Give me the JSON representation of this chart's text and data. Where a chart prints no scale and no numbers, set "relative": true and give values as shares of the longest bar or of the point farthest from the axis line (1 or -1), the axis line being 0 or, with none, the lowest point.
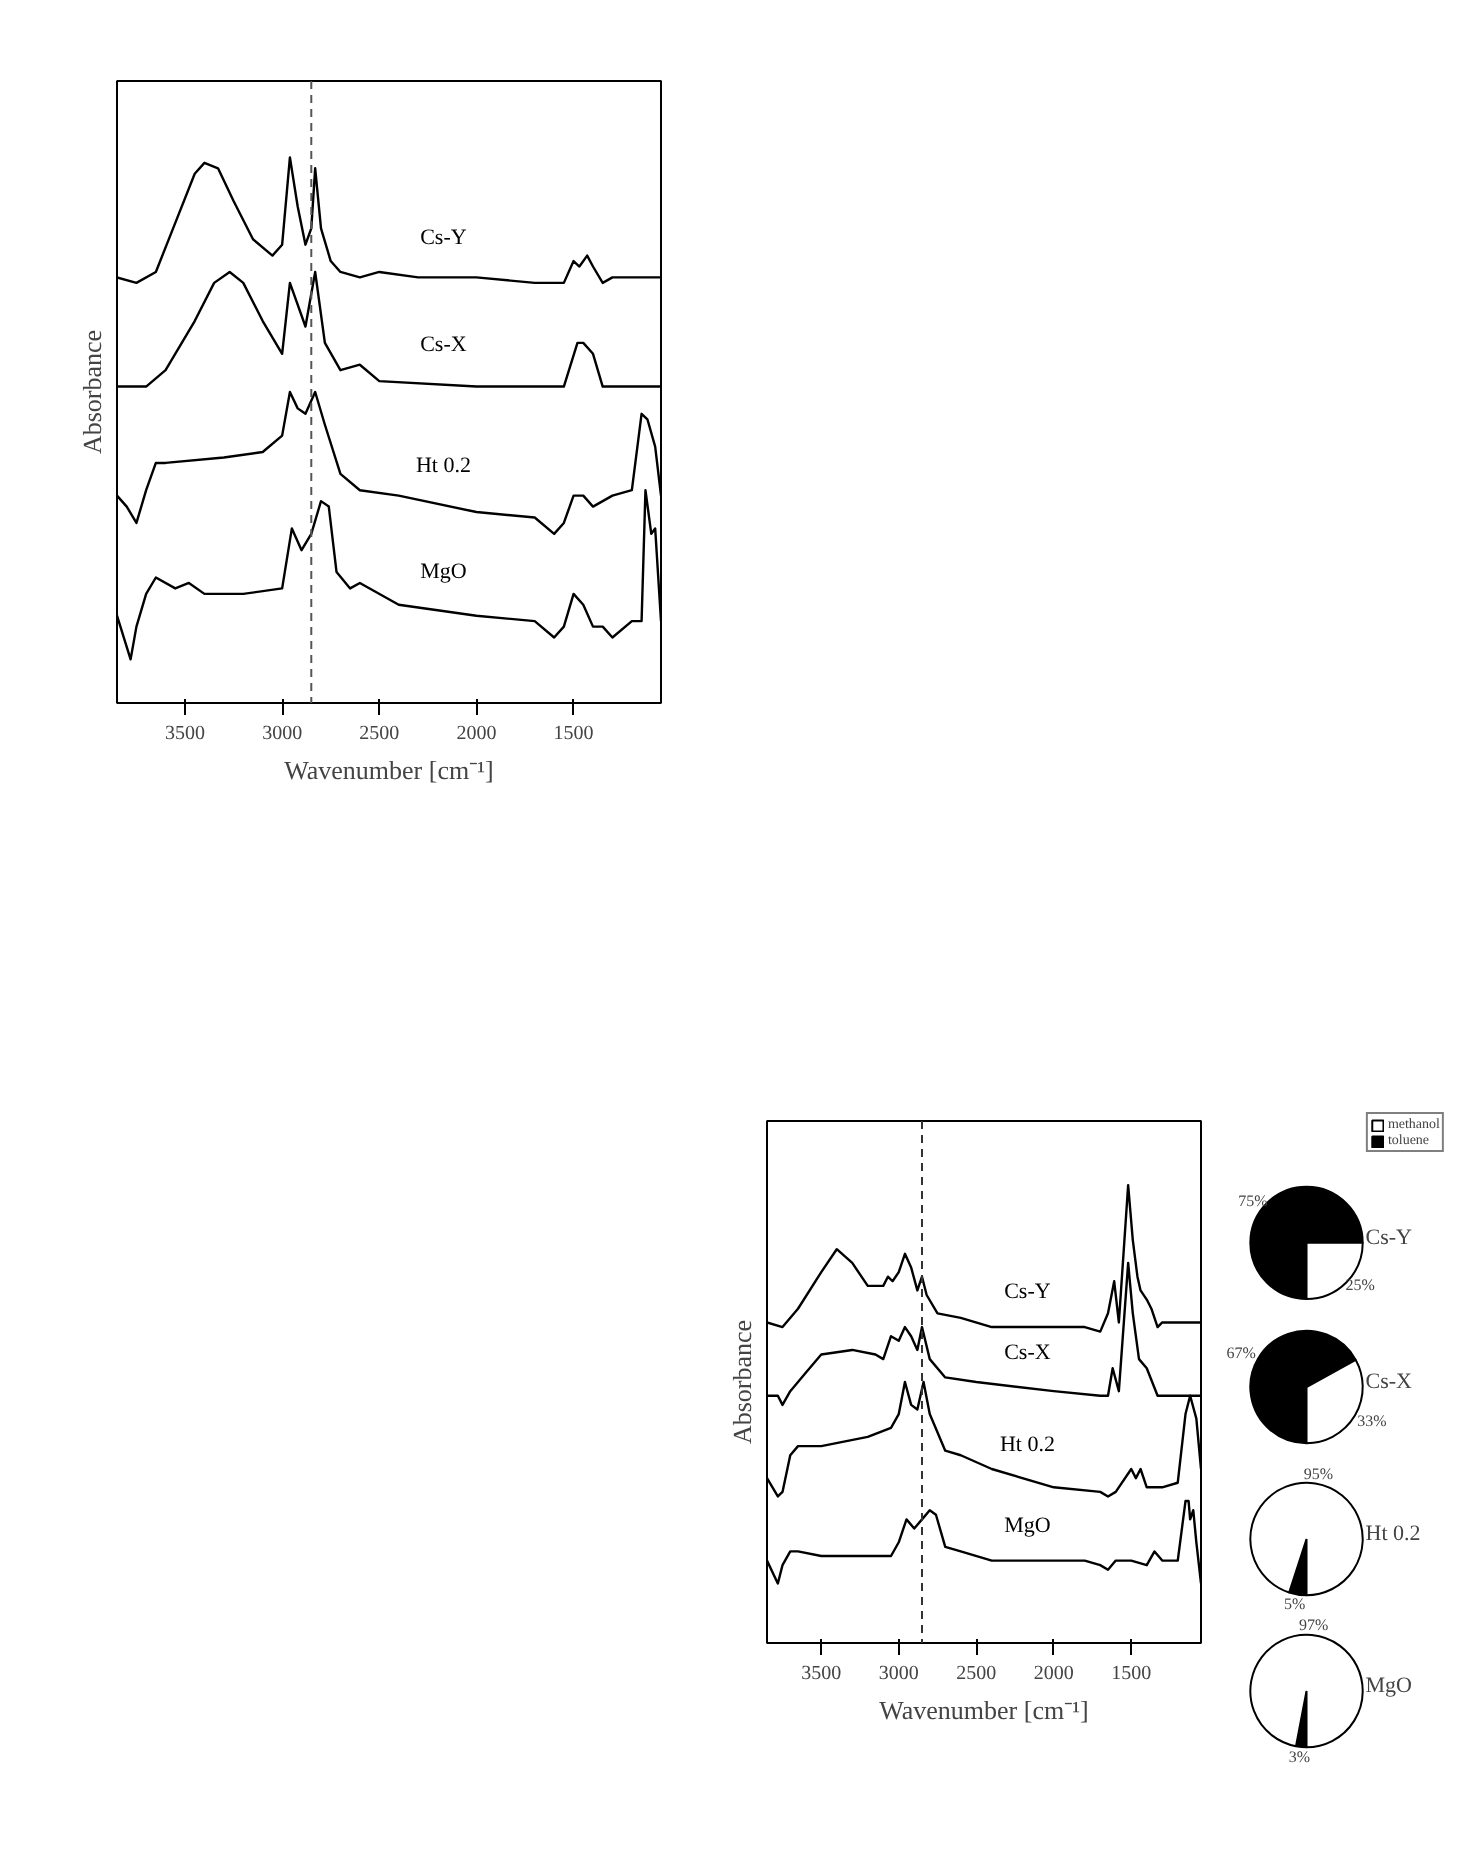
{
  "chart_data": [
    {
      "type": "line",
      "relative": true,
      "xlabel": "Wavenumber [cm⁻¹]",
      "ylabel": "Absorbance",
      "xlim": [
        3850,
        1050
      ],
      "xticks": [
        3500,
        3000,
        2500,
        2000,
        1500
      ],
      "grid": false,
      "ref_lines": [
        {
          "axis": "x",
          "value": 2850,
          "color": "#555555",
          "line_style": "dashed"
        }
      ],
      "series": [
        {
          "name": "Cs-Y",
          "color": "#000000",
          "x": [
            3850,
            3750,
            3650,
            3550,
            3450,
            3400,
            3330,
            3250,
            3150,
            3050,
            3000,
            2960,
            2920,
            2880,
            2850,
            2830,
            2800,
            2750,
            2700,
            2600,
            2500,
            2300,
            2000,
            1700,
            1550,
            1500,
            1470,
            1430,
            1400,
            1350,
            1300,
            1050
          ],
          "values": [
            0.78,
            0.77,
            0.79,
            0.88,
            0.97,
            0.99,
            0.98,
            0.92,
            0.85,
            0.82,
            0.84,
            1.0,
            0.91,
            0.84,
            0.87,
            0.98,
            0.87,
            0.81,
            0.79,
            0.78,
            0.79,
            0.78,
            0.78,
            0.77,
            0.77,
            0.81,
            0.8,
            0.82,
            0.8,
            0.77,
            0.78,
            0.78
          ]
        },
        {
          "name": "Cs-X",
          "color": "#000000",
          "x": [
            3850,
            3700,
            3600,
            3450,
            3350,
            3270,
            3200,
            3100,
            3000,
            2960,
            2880,
            2830,
            2780,
            2700,
            2600,
            2500,
            2000,
            1700,
            1550,
            1480,
            1450,
            1400,
            1350,
            1050
          ],
          "values": [
            0.58,
            0.58,
            0.61,
            0.7,
            0.77,
            0.79,
            0.77,
            0.7,
            0.64,
            0.77,
            0.69,
            0.79,
            0.66,
            0.61,
            0.62,
            0.59,
            0.58,
            0.58,
            0.58,
            0.66,
            0.66,
            0.64,
            0.58,
            0.58
          ]
        },
        {
          "name": "Ht 0.2",
          "color": "#000000",
          "x": [
            3850,
            3800,
            3750,
            3700,
            3650,
            3600,
            3300,
            3100,
            3000,
            2960,
            2920,
            2880,
            2830,
            2780,
            2700,
            2600,
            2400,
            2000,
            1700,
            1600,
            1550,
            1500,
            1450,
            1400,
            1300,
            1200,
            1150,
            1120,
            1080,
            1050
          ],
          "values": [
            0.38,
            0.36,
            0.33,
            0.39,
            0.44,
            0.44,
            0.45,
            0.46,
            0.49,
            0.57,
            0.54,
            0.53,
            0.57,
            0.51,
            0.42,
            0.39,
            0.38,
            0.35,
            0.34,
            0.31,
            0.33,
            0.38,
            0.38,
            0.36,
            0.38,
            0.39,
            0.53,
            0.52,
            0.47,
            0.38
          ]
        },
        {
          "name": "MgO",
          "color": "#000000",
          "x": [
            3850,
            3780,
            3750,
            3700,
            3650,
            3550,
            3480,
            3400,
            3200,
            3000,
            2950,
            2900,
            2850,
            2800,
            2760,
            2720,
            2650,
            2600,
            2400,
            2000,
            1700,
            1600,
            1550,
            1500,
            1450,
            1400,
            1350,
            1300,
            1200,
            1150,
            1130,
            1100,
            1080,
            1050
          ],
          "values": [
            0.16,
            0.08,
            0.14,
            0.2,
            0.23,
            0.21,
            0.22,
            0.2,
            0.2,
            0.21,
            0.32,
            0.28,
            0.31,
            0.37,
            0.36,
            0.24,
            0.21,
            0.22,
            0.18,
            0.16,
            0.15,
            0.12,
            0.14,
            0.2,
            0.18,
            0.14,
            0.14,
            0.12,
            0.15,
            0.15,
            0.39,
            0.31,
            0.32,
            0.15
          ]
        }
      ]
    },
    {
      "type": "line",
      "relative": true,
      "xlabel": "Wavenumber [cm⁻¹]",
      "ylabel": "Absorbance",
      "xlim": [
        3850,
        1050
      ],
      "xticks": [
        3500,
        3000,
        2500,
        2000,
        1500
      ],
      "grid": false,
      "ref_lines": [
        {
          "axis": "x",
          "value": 2850,
          "color": "#333333",
          "line_style": "dashed"
        }
      ],
      "series": [
        {
          "name": "Cs-Y",
          "color": "#000000",
          "x": [
            3850,
            3750,
            3650,
            3500,
            3400,
            3300,
            3200,
            3100,
            3070,
            3040,
            3000,
            2960,
            2920,
            2880,
            2850,
            2820,
            2750,
            2600,
            2400,
            2000,
            1800,
            1700,
            1650,
            1610,
            1580,
            1520,
            1490,
            1460,
            1440,
            1400,
            1370,
            1330,
            1300,
            1050
          ],
          "values": [
            0.7,
            0.69,
            0.73,
            0.81,
            0.86,
            0.83,
            0.78,
            0.78,
            0.8,
            0.79,
            0.81,
            0.85,
            0.82,
            0.77,
            0.8,
            0.76,
            0.72,
            0.71,
            0.69,
            0.69,
            0.69,
            0.68,
            0.72,
            0.79,
            0.7,
            1.0,
            0.88,
            0.8,
            0.77,
            0.75,
            0.73,
            0.69,
            0.7,
            0.7
          ]
        },
        {
          "name": "Cs-X",
          "color": "#000000",
          "x": [
            3850,
            3780,
            3750,
            3700,
            3600,
            3500,
            3300,
            3150,
            3100,
            3050,
            3000,
            2960,
            2920,
            2880,
            2850,
            2800,
            2700,
            2500,
            2000,
            1700,
            1650,
            1620,
            1580,
            1520,
            1490,
            1450,
            1400,
            1330,
            1050
          ],
          "values": [
            0.54,
            0.54,
            0.52,
            0.55,
            0.59,
            0.63,
            0.64,
            0.63,
            0.62,
            0.67,
            0.66,
            0.69,
            0.67,
            0.64,
            0.69,
            0.62,
            0.58,
            0.57,
            0.55,
            0.54,
            0.54,
            0.6,
            0.55,
            0.83,
            0.72,
            0.62,
            0.6,
            0.54,
            0.54
          ]
        },
        {
          "name": "Ht 0.2",
          "color": "#000000",
          "x": [
            3850,
            3780,
            3750,
            3700,
            3650,
            3500,
            3200,
            3050,
            3000,
            2960,
            2920,
            2880,
            2840,
            2800,
            2700,
            2600,
            2400,
            2000,
            1700,
            1650,
            1600,
            1500,
            1470,
            1440,
            1400,
            1300,
            1200,
            1150,
            1120,
            1080,
            1050
          ],
          "values": [
            0.36,
            0.32,
            0.33,
            0.41,
            0.43,
            0.43,
            0.45,
            0.47,
            0.5,
            0.57,
            0.52,
            0.51,
            0.57,
            0.5,
            0.42,
            0.41,
            0.38,
            0.34,
            0.33,
            0.32,
            0.33,
            0.38,
            0.36,
            0.38,
            0.34,
            0.34,
            0.35,
            0.5,
            0.54,
            0.49,
            0.38
          ]
        },
        {
          "name": "MgO",
          "color": "#000000",
          "x": [
            3850,
            3780,
            3750,
            3700,
            3650,
            3500,
            3300,
            3050,
            3000,
            2950,
            2900,
            2850,
            2800,
            2760,
            2700,
            2600,
            2400,
            2000,
            1800,
            1700,
            1650,
            1600,
            1500,
            1400,
            1350,
            1300,
            1200,
            1150,
            1130,
            1120,
            1100,
            1080,
            1050
          ],
          "values": [
            0.18,
            0.13,
            0.17,
            0.2,
            0.2,
            0.19,
            0.19,
            0.19,
            0.22,
            0.27,
            0.25,
            0.27,
            0.29,
            0.28,
            0.21,
            0.2,
            0.18,
            0.18,
            0.18,
            0.17,
            0.16,
            0.18,
            0.18,
            0.17,
            0.2,
            0.18,
            0.18,
            0.31,
            0.31,
            0.27,
            0.29,
            0.22,
            0.13
          ]
        }
      ]
    },
    {
      "type": "pie",
      "title": "Cs-Y",
      "categories": [
        "methanol",
        "toluene"
      ],
      "values": [
        25,
        75
      ],
      "colors": [
        "#ffffff",
        "#000000"
      ],
      "value_labels": [
        "25%",
        "75%"
      ],
      "legend": "top right"
    },
    {
      "type": "pie",
      "title": "Cs-X",
      "categories": [
        null,
        null
      ],
      "values": [
        33,
        67
      ],
      "colors": [
        "#ffffff",
        "#000000"
      ],
      "value_labels": [
        "33%",
        "67%"
      ]
    },
    {
      "type": "pie",
      "title": "Ht 0.2",
      "categories": [
        null,
        null
      ],
      "values": [
        95,
        5
      ],
      "colors": [
        "#ffffff",
        "#000000"
      ],
      "value_labels": [
        "95%",
        "5%"
      ]
    },
    {
      "type": "pie",
      "title": "MgO",
      "categories": [
        null,
        null
      ],
      "values": [
        97,
        3
      ],
      "colors": [
        "#ffffff",
        "#000000"
      ],
      "value_labels": [
        "97%",
        "3%"
      ]
    }
  ]
}
